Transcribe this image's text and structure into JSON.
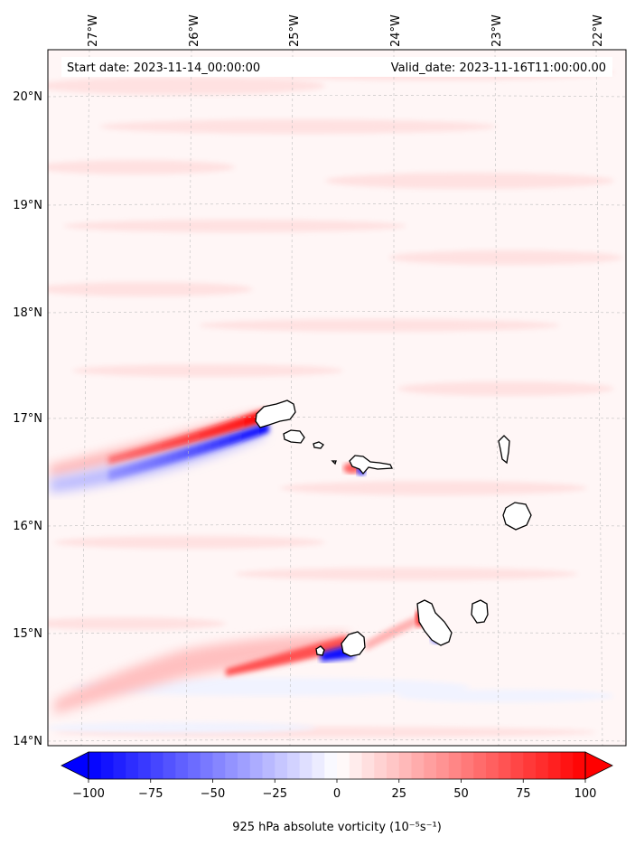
{
  "map": {
    "start_date": "Start date: 2023-11-14_00:00:00",
    "valid_date": "Valid_date: 2023-11-16T11:00:00.00",
    "lon_labels": [
      "27°W",
      "26°W",
      "25°W",
      "24°W",
      "23°W",
      "22°W"
    ],
    "lat_labels": [
      "20°N",
      "19°N",
      "18°N",
      "17°N",
      "16°N",
      "15°N",
      "14°N"
    ],
    "extent": {
      "lon_min": -27.35,
      "lon_max": -21.7,
      "lat_min": 13.95,
      "lat_max": 20.4
    },
    "islands": [
      {
        "name": "Santo Antão",
        "color": "#000000"
      },
      {
        "name": "São Vicente",
        "color": "#000000"
      },
      {
        "name": "Santa Luzia",
        "color": "#000000"
      },
      {
        "name": "São Nicolau",
        "color": "#000000"
      },
      {
        "name": "Sal",
        "color": "#000000"
      },
      {
        "name": "Boa Vista",
        "color": "#000000"
      },
      {
        "name": "Fogo",
        "color": "#000000"
      },
      {
        "name": "Brava",
        "color": "#000000"
      },
      {
        "name": "Santiago",
        "color": "#000000"
      },
      {
        "name": "Maio",
        "color": "#000000"
      }
    ]
  },
  "colorbar": {
    "ticks": [
      "−100",
      "−75",
      "−50",
      "−25",
      "0",
      "25",
      "50",
      "75",
      "100"
    ],
    "label": "925 hPa absolute vorticity (10⁻⁵s⁻¹)",
    "cmap": "bwr",
    "min_color": "#0000ff",
    "mid_color": "#ffffff",
    "max_color": "#ff0000",
    "vmin": -100,
    "vmax": 100,
    "extend": "both"
  }
}
